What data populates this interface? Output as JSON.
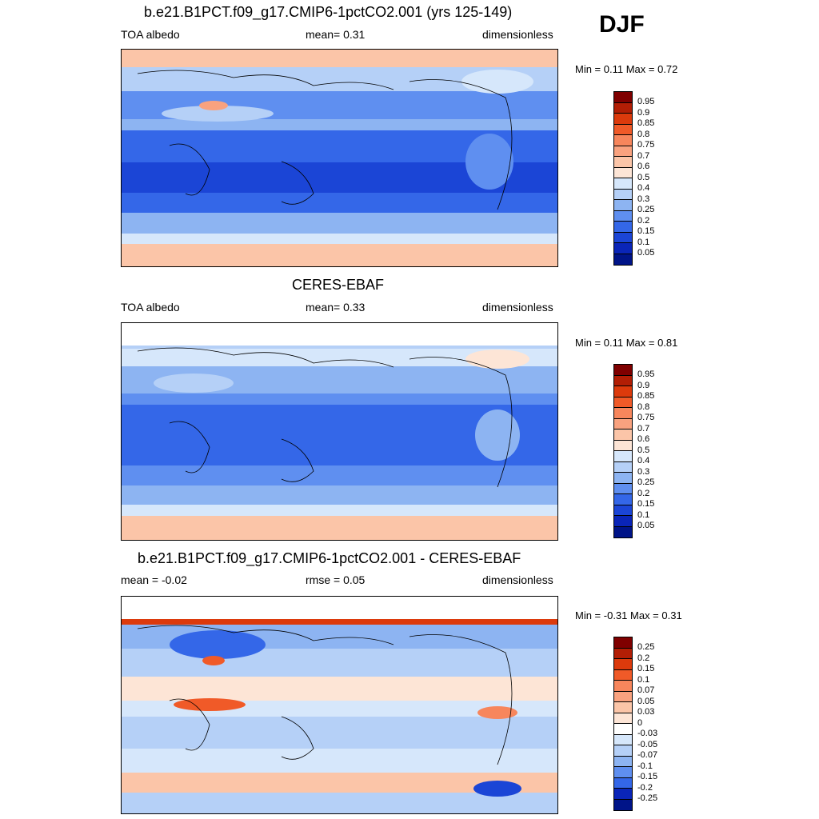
{
  "season": "DJF",
  "panels": [
    {
      "id": "model",
      "title": "b.e21.B1PCT.f09_g17.CMIP6-1pctCO2.001 (yrs 125-149)",
      "left_label": "TOA albedo",
      "center_label": "mean=   0.31",
      "right_label": "dimensionless",
      "minmax": "Min =   0.11 Max =   0.72",
      "colorbar_labels": [
        "0.95",
        "0.9",
        "0.85",
        "0.8",
        "0.75",
        "0.7",
        "0.6",
        "0.5",
        "0.4",
        "0.3",
        "0.25",
        "0.2",
        "0.15",
        "0.1",
        "0.05"
      ],
      "colorbar_colors": [
        "#7f0000",
        "#b21e05",
        "#dc3a0c",
        "#f05a28",
        "#f7865c",
        "#f9a27f",
        "#fbc5a8",
        "#fde5d6",
        "#d6e7fb",
        "#b5d0f7",
        "#8db4f2",
        "#5f8ff0",
        "#3467e8",
        "#1b45d6",
        "#0a25b8",
        "#001488"
      ]
    },
    {
      "id": "obs",
      "title": "CERES-EBAF",
      "left_label": "TOA albedo",
      "center_label": "mean=   0.33",
      "right_label": "dimensionless",
      "minmax": "Min =   0.11 Max =   0.81",
      "colorbar_labels": [
        "0.95",
        "0.9",
        "0.85",
        "0.8",
        "0.75",
        "0.7",
        "0.6",
        "0.5",
        "0.4",
        "0.3",
        "0.25",
        "0.2",
        "0.15",
        "0.1",
        "0.05"
      ],
      "colorbar_colors": [
        "#7f0000",
        "#b21e05",
        "#dc3a0c",
        "#f05a28",
        "#f7865c",
        "#f9a27f",
        "#fbc5a8",
        "#fde5d6",
        "#d6e7fb",
        "#b5d0f7",
        "#8db4f2",
        "#5f8ff0",
        "#3467e8",
        "#1b45d6",
        "#0a25b8",
        "#001488"
      ]
    },
    {
      "id": "diff",
      "title": "b.e21.B1PCT.f09_g17.CMIP6-1pctCO2.001 - CERES-EBAF",
      "left_label": "mean =  -0.02",
      "center_label": "rmse =   0.05",
      "right_label": "dimensionless",
      "minmax": "Min =  -0.31 Max =   0.31",
      "colorbar_labels": [
        "0.25",
        "0.2",
        "0.15",
        "0.1",
        "0.07",
        "0.05",
        "0.03",
        "0",
        "-0.03",
        "-0.05",
        "-0.07",
        "-0.1",
        "-0.15",
        "-0.2",
        "-0.25"
      ],
      "colorbar_colors": [
        "#7f0000",
        "#b21e05",
        "#dc3a0c",
        "#f05a28",
        "#f7865c",
        "#f9a27f",
        "#fbc5a8",
        "#fde5d6",
        "#ffffff",
        "#d6e7fb",
        "#b5d0f7",
        "#8db4f2",
        "#5f8ff0",
        "#3467e8",
        "#0a25b8",
        "#001488"
      ]
    }
  ]
}
